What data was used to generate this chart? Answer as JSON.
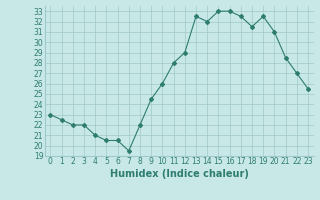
{
  "x": [
    0,
    1,
    2,
    3,
    4,
    5,
    6,
    7,
    8,
    9,
    10,
    11,
    12,
    13,
    14,
    15,
    16,
    17,
    18,
    19,
    20,
    21,
    22,
    23
  ],
  "y": [
    23,
    22.5,
    22,
    22,
    21,
    20.5,
    20.5,
    19.5,
    22,
    24.5,
    26,
    28,
    29,
    32.5,
    32,
    33,
    33,
    32.5,
    31.5,
    32.5,
    31,
    28.5,
    27,
    25.5
  ],
  "line_color": "#2e7d6e",
  "marker": "D",
  "marker_size": 2,
  "bg_color": "#c8e8e8",
  "grid_color": "#a0c8c8",
  "xlabel": "Humidex (Indice chaleur)",
  "xlim": [
    -0.5,
    23.5
  ],
  "ylim": [
    19,
    33.5
  ],
  "xticks": [
    0,
    1,
    2,
    3,
    4,
    5,
    6,
    7,
    8,
    9,
    10,
    11,
    12,
    13,
    14,
    15,
    16,
    17,
    18,
    19,
    20,
    21,
    22,
    23
  ],
  "yticks": [
    19,
    20,
    21,
    22,
    23,
    24,
    25,
    26,
    27,
    28,
    29,
    30,
    31,
    32,
    33
  ],
  "tick_color": "#2e7d6e",
  "xlabel_fontsize": 7,
  "tick_fontsize": 5.5,
  "linewidth": 0.8
}
